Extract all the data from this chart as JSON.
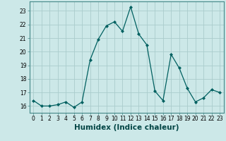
{
  "x": [
    0,
    1,
    2,
    3,
    4,
    5,
    6,
    7,
    8,
    9,
    10,
    11,
    12,
    13,
    14,
    15,
    16,
    17,
    18,
    19,
    20,
    21,
    22,
    23
  ],
  "y": [
    16.4,
    16.0,
    16.0,
    16.1,
    16.3,
    15.9,
    16.3,
    19.4,
    20.9,
    21.9,
    22.2,
    21.5,
    23.3,
    21.3,
    20.5,
    17.1,
    16.4,
    19.8,
    18.8,
    17.3,
    16.3,
    16.6,
    17.2,
    17.0
  ],
  "xlabel": "Humidex (Indice chaleur)",
  "line_color": "#006060",
  "marker": "D",
  "marker_size": 2.0,
  "bg_color": "#cce8e8",
  "grid_color": "#aacccc",
  "ylim": [
    15.5,
    23.7
  ],
  "xlim": [
    -0.5,
    23.5
  ],
  "yticks": [
    16,
    17,
    18,
    19,
    20,
    21,
    22,
    23
  ],
  "xticks": [
    0,
    1,
    2,
    3,
    4,
    5,
    6,
    7,
    8,
    9,
    10,
    11,
    12,
    13,
    14,
    15,
    16,
    17,
    18,
    19,
    20,
    21,
    22,
    23
  ],
  "tick_fontsize": 5.5,
  "xlabel_fontsize": 7.5
}
